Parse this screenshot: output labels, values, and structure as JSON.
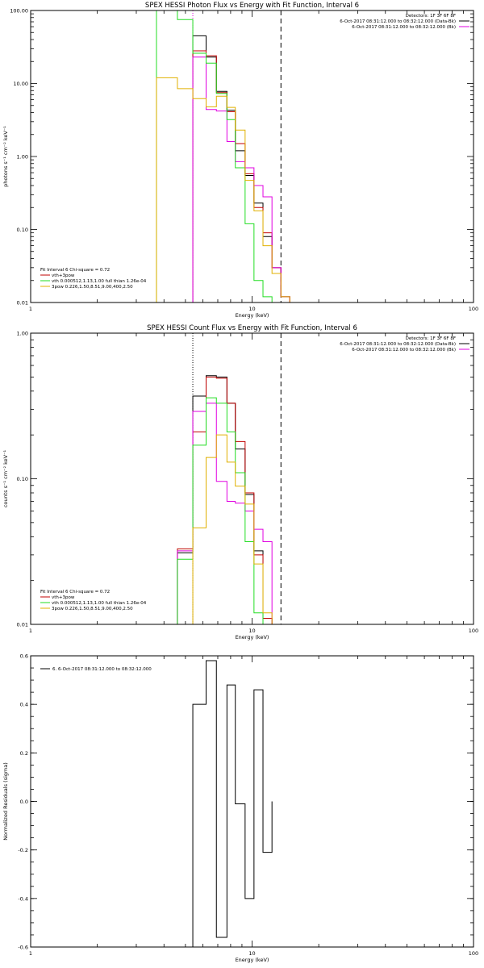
{
  "colors": {
    "black": "#000000",
    "red": "#c00000",
    "magenta": "#e000e0",
    "green": "#22dd22",
    "yellow": "#e0b000"
  },
  "chart_data": [
    {
      "type": "line",
      "title": "SPEX HESSI Photon Flux vs Energy with Fit Function, Interval 6",
      "xlabel": "Energy (keV)",
      "ylabel": "photons s⁻¹ cm⁻² keV⁻¹",
      "xscale": "log",
      "yscale": "log",
      "xlim": [
        1,
        100
      ],
      "ylim": [
        0.01,
        100
      ],
      "xticks": [
        {
          "v": 1,
          "label": "1"
        },
        {
          "v": 10,
          "label": "10"
        },
        {
          "v": 100,
          "label": "100"
        }
      ],
      "yticks": [
        {
          "v": 0.01,
          "label": "0.01"
        },
        {
          "v": 0.1,
          "label": "0.10"
        },
        {
          "v": 1,
          "label": "1.00"
        },
        {
          "v": 10,
          "label": "10.00"
        },
        {
          "v": 100,
          "label": "100.00"
        }
      ],
      "edges": [
        3.7,
        4.6,
        5.4,
        6.2,
        6.9,
        7.7,
        8.4,
        9.3,
        10.2,
        11.2,
        12.3,
        13.5,
        14.8,
        16.2
      ],
      "vlines": [
        {
          "x": 5.4,
          "style": "dotted",
          "color": "magenta"
        },
        {
          "x": 13.5,
          "style": "dashed",
          "color": "black"
        }
      ],
      "series": [
        {
          "color": "black",
          "values": [
            null,
            null,
            45,
            23,
            7.8,
            4.3,
            1.2,
            0.55,
            0.23,
            0.08,
            0.03,
            0.012,
            null
          ]
        },
        {
          "color": "red",
          "values": [
            null,
            null,
            28,
            24,
            7.5,
            4.1,
            1.5,
            0.58,
            0.2,
            0.09,
            0.03,
            0.012,
            null
          ]
        },
        {
          "color": "magenta",
          "values": [
            null,
            null,
            23,
            4.4,
            4.2,
            1.6,
            0.85,
            0.7,
            0.4,
            0.28,
            0.03,
            0.012,
            null
          ]
        },
        {
          "color": "green",
          "values": [
            100,
            75,
            26,
            19,
            7.3,
            3.2,
            0.7,
            0.12,
            0.02,
            0.012,
            null,
            null,
            null
          ]
        },
        {
          "color": "yellow",
          "values": [
            12,
            8.5,
            6.2,
            4.8,
            6.7,
            4.7,
            2.3,
            0.47,
            0.18,
            0.06,
            0.025,
            0.012,
            null
          ]
        }
      ],
      "legend_top": [
        {
          "text": "Detectors: 1F 3F 6F 8F",
          "color": null
        },
        {
          "text": "6-Oct-2017 08:31:12.000 to 08:32:12.000 (Data-Bk)",
          "color": "black"
        },
        {
          "text": "6-Oct-2017 08:31:12.000 to 08:32:12.000 (Bk)",
          "color": "magenta"
        }
      ],
      "legend_bottom": [
        {
          "text": "Fit Interval 6   Chi-square = 0.72",
          "color": null
        },
        {
          "text": "vth+3pow",
          "color": "red"
        },
        {
          "text": "vth 0.000512,1.13,1.00  full thian 1.26e-04",
          "color": "green"
        },
        {
          "text": "3pow 0.226,1.50,8.51,9.00,400,2.50",
          "color": "yellow"
        }
      ]
    },
    {
      "type": "line",
      "title": "SPEX HESSI Count Flux vs Energy with Fit Function, Interval 6",
      "xlabel": "Energy (keV)",
      "ylabel": "counts s⁻¹ cm⁻² keV⁻¹",
      "xscale": "log",
      "yscale": "log",
      "xlim": [
        1,
        100
      ],
      "ylim": [
        0.01,
        1
      ],
      "xticks": [
        {
          "v": 1,
          "label": "1"
        },
        {
          "v": 10,
          "label": "10"
        },
        {
          "v": 100,
          "label": "100"
        }
      ],
      "yticks": [
        {
          "v": 0.01,
          "label": "0.01"
        },
        {
          "v": 0.1,
          "label": "0.10"
        },
        {
          "v": 1,
          "label": "1.00"
        }
      ],
      "edges": [
        4.6,
        5.4,
        6.2,
        6.9,
        7.7,
        8.4,
        9.3,
        10.2,
        11.2,
        12.3,
        13.5,
        14.8
      ],
      "vlines": [
        {
          "x": 5.4,
          "style": "dotted",
          "color": "black"
        },
        {
          "x": 13.5,
          "style": "dashed",
          "color": "black"
        }
      ],
      "series": [
        {
          "color": "black",
          "values": [
            0.031,
            0.37,
            0.51,
            0.5,
            0.33,
            0.16,
            0.078,
            0.032,
            0.011,
            null,
            null
          ]
        },
        {
          "color": "red",
          "values": [
            0.033,
            0.21,
            0.5,
            0.49,
            0.33,
            0.18,
            0.08,
            0.03,
            0.011,
            null,
            null
          ]
        },
        {
          "color": "magenta",
          "values": [
            0.032,
            0.29,
            0.33,
            0.096,
            0.07,
            0.068,
            0.06,
            0.045,
            0.037,
            null,
            null
          ]
        },
        {
          "color": "green",
          "values": [
            0.028,
            0.17,
            0.36,
            0.33,
            0.21,
            0.11,
            0.037,
            0.012,
            null,
            null,
            null
          ]
        },
        {
          "color": "yellow",
          "values": [
            null,
            0.046,
            0.14,
            0.2,
            0.13,
            0.089,
            0.067,
            0.026,
            0.012,
            null,
            null
          ]
        }
      ],
      "legend_top": [
        {
          "text": "Detectors: 1F 3F 6F 8F",
          "color": null
        },
        {
          "text": "6-Oct-2017 08:31:12.000 to 08:32:12.000 (Data-Bk)",
          "color": "black"
        },
        {
          "text": "6-Oct-2017 08:31:12.000 to 08:32:12.000 (Bk)",
          "color": "magenta"
        }
      ],
      "legend_bottom": [
        {
          "text": "Fit Interval 6   Chi-square = 0.72",
          "color": null
        },
        {
          "text": "vth+3pow",
          "color": "red"
        },
        {
          "text": "vth 0.000512,1.13,1.00  full thian 1.26e-04",
          "color": "green"
        },
        {
          "text": "3pow 0.226,1.50,8.51,9.00,400,2.50",
          "color": "yellow"
        }
      ]
    },
    {
      "type": "line",
      "title": "",
      "xlabel": "Energy (keV)",
      "ylabel": "Normalized Residuals (sigma)",
      "xscale": "log",
      "yscale": "linear",
      "xlim": [
        1,
        100
      ],
      "ylim": [
        -0.6,
        0.6
      ],
      "xticks": [
        {
          "v": 1,
          "label": "1"
        },
        {
          "v": 10,
          "label": "10"
        },
        {
          "v": 100,
          "label": "100"
        }
      ],
      "yticks": [
        {
          "v": -0.6,
          "label": "-0.6"
        },
        {
          "v": -0.4,
          "label": "-0.4"
        },
        {
          "v": -0.2,
          "label": "-0.2"
        },
        {
          "v": 0,
          "label": "0.0"
        },
        {
          "v": 0.2,
          "label": "0.2"
        },
        {
          "v": 0.4,
          "label": "0.4"
        },
        {
          "v": 0.6,
          "label": "0.6"
        }
      ],
      "edges": [
        5.4,
        6.2,
        6.9,
        7.7,
        8.4,
        9.3,
        10.2,
        11.2,
        12.3,
        13.5
      ],
      "vlines": [],
      "series": [
        {
          "color": "black",
          "values": [
            0.4,
            0.58,
            -0.56,
            0.48,
            -0.01,
            -0.4,
            0.46,
            -0.21,
            null
          ]
        }
      ],
      "legend_top": [],
      "legend_bottom": [],
      "legend_topleft": [
        {
          "text": "6.  6-Oct-2017 08:31:12.000 to 08:32:12.000",
          "color": "black"
        }
      ]
    }
  ]
}
